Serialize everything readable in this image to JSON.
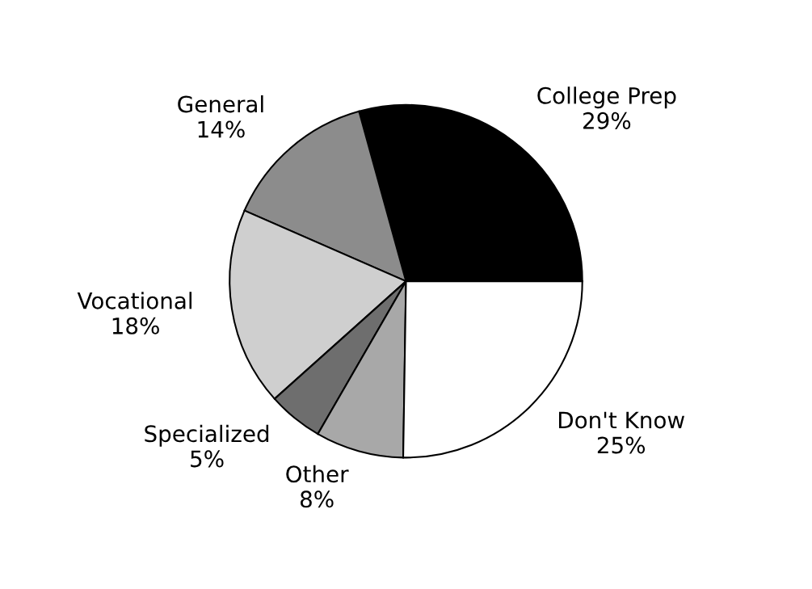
{
  "chart_data": {
    "type": "pie",
    "categories": [
      "College Prep",
      "General",
      "Vocational",
      "Specialized",
      "Other",
      "Don't Know"
    ],
    "values": [
      29,
      14,
      18,
      5,
      8,
      25
    ],
    "value_labels": [
      "29%",
      "14%",
      "18%",
      "5%",
      "8%",
      "25%"
    ],
    "colors": [
      "#000000",
      "#8c8c8c",
      "#cfcfcf",
      "#6e6e6e",
      "#a8a8a8",
      "#ffffff"
    ]
  }
}
